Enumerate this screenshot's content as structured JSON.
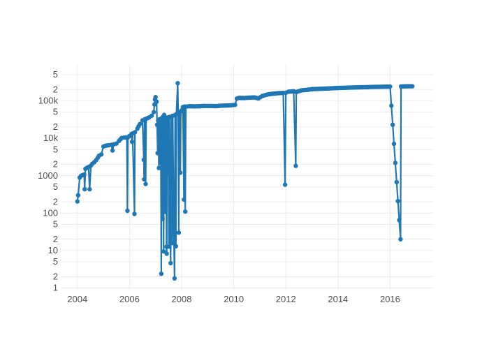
{
  "figure": {
    "background": "#ffffff",
    "plot_bgcolor": "#ffffff",
    "grid_color": "#ececec",
    "tick_label_color": "#4f4f4f",
    "accent_line_color": "#1f77b4"
  },
  "chart_data": {
    "type": "line",
    "mode": "lines+markers",
    "title": "",
    "xlabel": "",
    "ylabel": "",
    "legend_position": "none",
    "grid": true,
    "y_scale": "log",
    "xlim": [
      2003.39,
      2017.65
    ],
    "ylim": [
      0.9,
      950000
    ],
    "x_ticks": [
      {
        "v": 2004,
        "label": "2004"
      },
      {
        "v": 2006,
        "label": "2006"
      },
      {
        "v": 2008,
        "label": "2008"
      },
      {
        "v": 2010,
        "label": "2010"
      },
      {
        "v": 2012,
        "label": "2012"
      },
      {
        "v": 2014,
        "label": "2014"
      },
      {
        "v": 2016,
        "label": "2016"
      }
    ],
    "y_ticks": [
      {
        "v": 1,
        "label": "1"
      },
      {
        "v": 2,
        "label": "2"
      },
      {
        "v": 5,
        "label": "5"
      },
      {
        "v": 10,
        "label": "10"
      },
      {
        "v": 20,
        "label": "2"
      },
      {
        "v": 50,
        "label": "5"
      },
      {
        "v": 100,
        "label": "100"
      },
      {
        "v": 200,
        "label": "2"
      },
      {
        "v": 500,
        "label": "5"
      },
      {
        "v": 1000,
        "label": "1000"
      },
      {
        "v": 2000,
        "label": "2"
      },
      {
        "v": 5000,
        "label": "5"
      },
      {
        "v": 10000,
        "label": "10k"
      },
      {
        "v": 20000,
        "label": "2"
      },
      {
        "v": 50000,
        "label": "5"
      },
      {
        "v": 100000,
        "label": "100k"
      },
      {
        "v": 200000,
        "label": "2"
      },
      {
        "v": 500000,
        "label": "5"
      }
    ],
    "series": [
      {
        "name": "trace 0",
        "color": "#1f77b4",
        "points": [
          [
            2004.0,
            205
          ],
          [
            2004.03,
            300
          ],
          [
            2004.09,
            890
          ],
          [
            2004.14,
            990
          ],
          [
            2004.2,
            1040
          ],
          [
            2004.26,
            1070
          ],
          [
            2004.28,
            435
          ],
          [
            2004.31,
            1530
          ],
          [
            2004.38,
            1640
          ],
          [
            2004.43,
            1700
          ],
          [
            2004.47,
            435
          ],
          [
            2004.52,
            1870
          ],
          [
            2004.58,
            2100
          ],
          [
            2004.65,
            2300
          ],
          [
            2004.72,
            2600
          ],
          [
            2004.78,
            3000
          ],
          [
            2004.83,
            3400
          ],
          [
            2004.92,
            3700
          ],
          [
            2005.0,
            6000
          ],
          [
            2005.08,
            6300
          ],
          [
            2005.2,
            6500
          ],
          [
            2005.3,
            6700
          ],
          [
            2005.35,
            4700
          ],
          [
            2005.4,
            6900
          ],
          [
            2005.5,
            7200
          ],
          [
            2005.6,
            8500
          ],
          [
            2005.65,
            9300
          ],
          [
            2005.7,
            10200
          ],
          [
            2005.8,
            10400
          ],
          [
            2005.9,
            10500
          ],
          [
            2005.92,
            115
          ],
          [
            2005.94,
            10600
          ],
          [
            2006.0,
            11500
          ],
          [
            2006.08,
            13000
          ],
          [
            2006.1,
            8000
          ],
          [
            2006.12,
            13500
          ],
          [
            2006.19,
            95
          ],
          [
            2006.21,
            14500
          ],
          [
            2006.3,
            18000
          ],
          [
            2006.4,
            24000
          ],
          [
            2006.5,
            30000
          ],
          [
            2006.55,
            2650
          ],
          [
            2006.56,
            800
          ],
          [
            2006.58,
            32000
          ],
          [
            2006.62,
            600
          ],
          [
            2006.64,
            33000
          ],
          [
            2006.75,
            36000
          ],
          [
            2006.85,
            40000
          ],
          [
            2006.93,
            50000
          ],
          [
            2006.96,
            80000
          ],
          [
            2006.98,
            108000
          ],
          [
            2007.0,
            125000
          ],
          [
            2007.04,
            95000
          ],
          [
            2007.06,
            23000
          ],
          [
            2007.08,
            4000
          ],
          [
            2007.1,
            30000
          ],
          [
            2007.13,
            1600
          ],
          [
            2007.15,
            32000
          ],
          [
            2007.18,
            2200
          ],
          [
            2007.2,
            33000
          ],
          [
            2007.22,
            2.4
          ],
          [
            2007.24,
            34000
          ],
          [
            2007.26,
            8200
          ],
          [
            2007.27,
            70
          ],
          [
            2007.29,
            38000
          ],
          [
            2007.3,
            2700
          ],
          [
            2007.305,
            1100
          ],
          [
            2007.31,
            9.5
          ],
          [
            2007.33,
            42000
          ],
          [
            2007.36,
            108
          ],
          [
            2007.38,
            36000
          ],
          [
            2007.41,
            2300
          ],
          [
            2007.42,
            12.6
          ],
          [
            2007.43,
            8.2
          ],
          [
            2007.44,
            35000
          ],
          [
            2007.47,
            1100
          ],
          [
            2007.49,
            36000
          ],
          [
            2007.51,
            12.7
          ],
          [
            2007.53,
            37000
          ],
          [
            2007.56,
            70
          ],
          [
            2007.58,
            4.6
          ],
          [
            2007.6,
            38000
          ],
          [
            2007.64,
            15.8
          ],
          [
            2007.66,
            40000
          ],
          [
            2007.7,
            37
          ],
          [
            2007.73,
            1.8
          ],
          [
            2007.75,
            42000
          ],
          [
            2007.78,
            13
          ],
          [
            2007.8,
            44000
          ],
          [
            2007.85,
            295000
          ],
          [
            2007.87,
            46000
          ],
          [
            2007.89,
            30
          ],
          [
            2007.91,
            48000
          ],
          [
            2007.95,
            1200
          ],
          [
            2007.97,
            52000
          ],
          [
            2008.0,
            56000
          ],
          [
            2008.05,
            68000
          ],
          [
            2008.09,
            230
          ],
          [
            2008.11,
            70000
          ],
          [
            2008.14,
            110
          ],
          [
            2008.16,
            70000
          ],
          [
            2008.3,
            72000
          ],
          [
            2008.5,
            71000
          ],
          [
            2008.7,
            72000
          ],
          [
            2008.9,
            73000
          ],
          [
            2009.1,
            73000
          ],
          [
            2009.3,
            72000
          ],
          [
            2009.5,
            74000
          ],
          [
            2009.7,
            75000
          ],
          [
            2009.9,
            76000
          ],
          [
            2010.05,
            78000
          ],
          [
            2010.12,
            115000
          ],
          [
            2010.2,
            120000
          ],
          [
            2010.4,
            119000
          ],
          [
            2010.6,
            122000
          ],
          [
            2010.8,
            123000
          ],
          [
            2010.95,
            116000
          ],
          [
            2011.1,
            135000
          ],
          [
            2011.3,
            148000
          ],
          [
            2011.5,
            155000
          ],
          [
            2011.7,
            160000
          ],
          [
            2011.9,
            163000
          ],
          [
            2011.97,
            575
          ],
          [
            2012.0,
            165000
          ],
          [
            2012.1,
            175000
          ],
          [
            2012.3,
            180000
          ],
          [
            2012.38,
            1830
          ],
          [
            2012.4,
            172000
          ],
          [
            2012.6,
            190000
          ],
          [
            2012.8,
            196000
          ],
          [
            2013.0,
            205000
          ],
          [
            2013.5,
            212000
          ],
          [
            2014.0,
            220000
          ],
          [
            2014.5,
            226000
          ],
          [
            2015.0,
            231000
          ],
          [
            2015.5,
            236000
          ],
          [
            2016.0,
            240000
          ],
          [
            2016.4,
            20
          ],
          [
            2016.42,
            242000
          ],
          [
            2016.6,
            244000
          ],
          [
            2016.85,
            245000
          ]
        ]
      }
    ]
  }
}
